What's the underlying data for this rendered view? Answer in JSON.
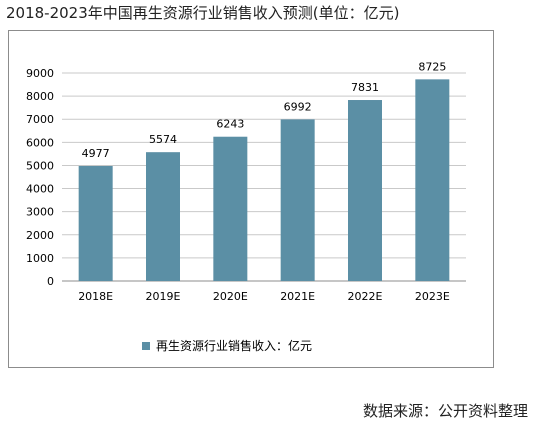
{
  "title": "2018-2023年中国再生资源行业销售收入预测(单位：亿元)",
  "source": "数据来源：公开资料整理",
  "colors": {
    "bar": "#5b8fa5",
    "grid": "#c9c9c9",
    "axis": "#8c8c8c"
  },
  "chart_data": {
    "type": "bar",
    "categories": [
      "2018E",
      "2019E",
      "2020E",
      "2021E",
      "2022E",
      "2023E"
    ],
    "series": [
      {
        "name": "再生资源行业销售收入：亿元",
        "values": [
          4977,
          5574,
          6243,
          6992,
          7831,
          8725
        ]
      }
    ],
    "ylim": [
      0,
      9000
    ],
    "yticks": [
      0,
      1000,
      2000,
      3000,
      4000,
      5000,
      6000,
      7000,
      8000,
      9000
    ],
    "grid": true,
    "legend": "bottom"
  }
}
